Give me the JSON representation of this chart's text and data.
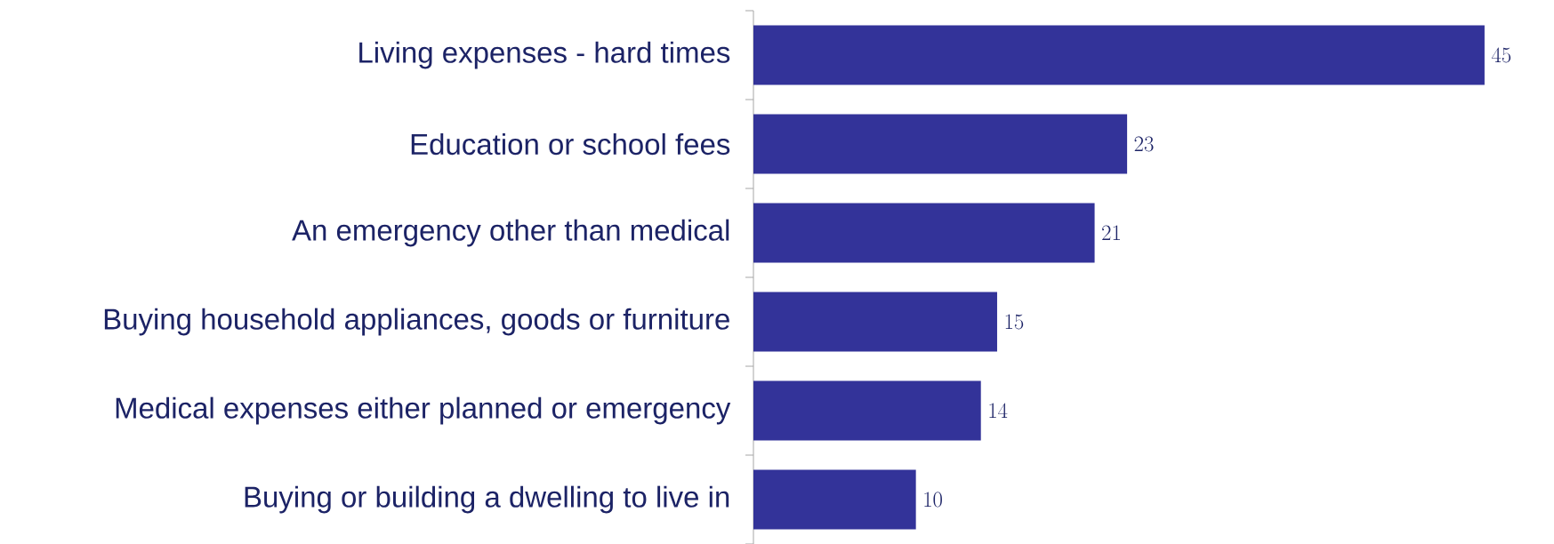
{
  "chart_data": {
    "type": "bar",
    "orientation": "horizontal",
    "categories": [
      "Living expenses - hard times",
      "Education or school fees",
      "An emergency other than medical",
      "Buying household appliances, goods or furniture",
      "Medical expenses either planned or emergency",
      "Buying or building a dwelling to live in"
    ],
    "values": [
      45,
      23,
      21,
      15,
      14,
      10
    ],
    "color": "#333399",
    "data_labels": true
  }
}
